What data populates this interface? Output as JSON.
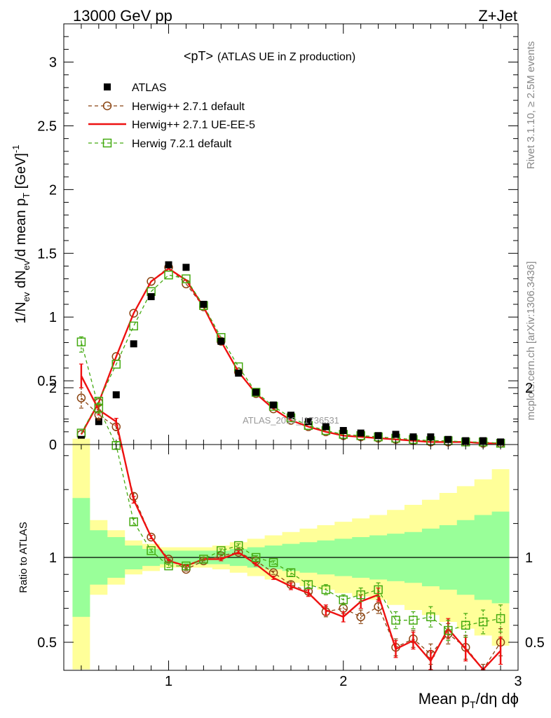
{
  "header": {
    "left": "13000 GeV pp",
    "right": "Z+Jet",
    "plot_title": "<pT>",
    "plot_subtitle": "(ATLAS UE in Z production)",
    "side_rivet": "Rivet 3.1.10, ≥ 2.5M events",
    "side_mcplots": "mcplots.cern.ch [arXiv:1306.3436]",
    "watermark": "ATLAS_2019_I1736531"
  },
  "colors": {
    "data": "#000000",
    "herwigpp_default": "#8B4513",
    "herwigpp_ueee5": "#ee1111",
    "herwig7": "#44aa11",
    "band_inner": "#99ff99",
    "band_outer": "#ffff99"
  },
  "chart_data": [
    {
      "type": "scatter",
      "title": "<pT> (ATLAS UE in Z production)",
      "xlabel": "Mean p_T/dη dϕ",
      "ylabel": "1/N_ev dN_ev/d mean p_T [GeV]^-1",
      "xlim": [
        0.4,
        3.0
      ],
      "ylim": [
        0,
        3.3
      ],
      "x_ticks": [
        "1",
        "2",
        "3"
      ],
      "y_ticks": [
        "0",
        "0.5",
        "1",
        "1.5",
        "2",
        "2.5",
        "3"
      ],
      "legend_position": "top-left",
      "x": [
        0.5,
        0.6,
        0.7,
        0.8,
        0.9,
        1.0,
        1.1,
        1.2,
        1.3,
        1.4,
        1.5,
        1.6,
        1.7,
        1.8,
        1.9,
        2.0,
        2.1,
        2.2,
        2.3,
        2.4,
        2.5,
        2.6,
        2.7,
        2.8,
        2.9
      ],
      "series": [
        {
          "name": "ATLAS",
          "style": "markers",
          "values": [
            0.04,
            0.18,
            0.39,
            0.79,
            1.16,
            1.41,
            1.39,
            1.1,
            0.81,
            0.56,
            0.41,
            0.31,
            0.23,
            0.18,
            0.14,
            0.11,
            0.09,
            0.07,
            0.08,
            0.06,
            0.06,
            0.04,
            0.03,
            0.03,
            0.02
          ]
        },
        {
          "name": "Herwig++ 2.7.1 default",
          "style": "dashed-circle",
          "values": [
            0.08,
            0.33,
            0.69,
            1.03,
            1.28,
            1.39,
            1.26,
            1.08,
            0.81,
            0.57,
            0.4,
            0.28,
            0.19,
            0.14,
            0.1,
            0.07,
            0.06,
            0.05,
            0.04,
            0.03,
            0.02,
            0.02,
            0.02,
            0.01,
            0.01
          ]
        },
        {
          "name": "Herwig++ 2.7.1 UE-EE-5",
          "style": "solid",
          "values": [
            0.08,
            0.33,
            0.69,
            1.03,
            1.28,
            1.38,
            1.29,
            1.08,
            0.81,
            0.57,
            0.4,
            0.28,
            0.19,
            0.14,
            0.1,
            0.07,
            0.06,
            0.05,
            0.04,
            0.03,
            0.02,
            0.02,
            0.02,
            0.01,
            0.01
          ]
        },
        {
          "name": "Herwig 7.2.1 default",
          "style": "dashed-square",
          "values": [
            0.09,
            0.34,
            0.63,
            0.93,
            1.2,
            1.33,
            1.3,
            1.09,
            0.84,
            0.61,
            0.41,
            0.3,
            0.21,
            0.15,
            0.11,
            0.08,
            0.07,
            0.06,
            0.05,
            0.04,
            0.03,
            0.03,
            0.02,
            0.02,
            0.01
          ]
        }
      ]
    },
    {
      "type": "line",
      "ylabel": "Ratio to ATLAS",
      "xlim": [
        0.4,
        3.0
      ],
      "ylim": [
        0.34,
        2.3
      ],
      "x_ticks": [
        "1",
        "2",
        "3"
      ],
      "y_ticks": [
        "0.5",
        "1",
        "2"
      ],
      "x": [
        0.5,
        0.6,
        0.7,
        0.8,
        0.9,
        1.0,
        1.1,
        1.2,
        1.3,
        1.4,
        1.5,
        1.6,
        1.7,
        1.8,
        1.9,
        2.0,
        2.1,
        2.2,
        2.3,
        2.4,
        2.5,
        2.6,
        2.7,
        2.8,
        2.9
      ],
      "bands": {
        "inner_half_width": [
          0.35,
          0.16,
          0.12,
          0.07,
          0.05,
          0.04,
          0.04,
          0.04,
          0.04,
          0.05,
          0.06,
          0.07,
          0.08,
          0.09,
          0.1,
          0.11,
          0.12,
          0.13,
          0.14,
          0.15,
          0.17,
          0.19,
          0.22,
          0.25,
          0.27
        ],
        "outer_half_width": [
          0.7,
          0.22,
          0.16,
          0.1,
          0.08,
          0.06,
          0.06,
          0.06,
          0.07,
          0.09,
          0.11,
          0.13,
          0.15,
          0.17,
          0.19,
          0.21,
          0.23,
          0.25,
          0.28,
          0.31,
          0.34,
          0.38,
          0.42,
          0.46,
          0.52
        ]
      },
      "series": [
        {
          "name": "Herwig++ 2.7.1 default",
          "values": [
            1.94,
            1.84,
            1.77,
            1.36,
            1.12,
            0.99,
            0.93,
            0.98,
            1.01,
            1.03,
            0.98,
            0.91,
            0.84,
            0.8,
            0.68,
            0.7,
            0.65,
            0.71,
            0.47,
            0.52,
            0.43,
            0.55,
            0.47,
            0.3,
            0.5
          ],
          "errors": [
            0.06,
            0.03,
            0.02,
            0.02,
            0.01,
            0.01,
            0.01,
            0.01,
            0.01,
            0.01,
            0.01,
            0.01,
            0.02,
            0.02,
            0.03,
            0.03,
            0.04,
            0.04,
            0.05,
            0.05,
            0.06,
            0.06,
            0.07,
            0.07,
            0.08
          ]
        },
        {
          "name": "Herwig++ 2.7.1 UE-EE-5",
          "values": [
            2.07,
            1.87,
            1.8,
            1.34,
            1.12,
            0.98,
            0.95,
            0.99,
            0.99,
            1.03,
            0.96,
            0.88,
            0.83,
            0.79,
            0.69,
            0.65,
            0.74,
            0.78,
            0.46,
            0.51,
            0.39,
            0.58,
            0.46,
            0.22,
            0.45
          ],
          "errors": [
            0.07,
            0.03,
            0.02,
            0.02,
            0.01,
            0.01,
            0.01,
            0.01,
            0.01,
            0.01,
            0.01,
            0.01,
            0.02,
            0.02,
            0.03,
            0.03,
            0.04,
            0.04,
            0.05,
            0.05,
            0.06,
            0.06,
            0.07,
            0.07,
            0.08
          ]
        },
        {
          "name": "Herwig 7.2.1 default",
          "values": [
            2.27,
            1.88,
            1.66,
            1.21,
            1.04,
            0.95,
            0.95,
            0.99,
            1.04,
            1.07,
            1.0,
            0.97,
            0.91,
            0.84,
            0.81,
            0.75,
            0.78,
            0.81,
            0.63,
            0.63,
            0.65,
            0.57,
            0.6,
            0.62,
            0.64
          ],
          "errors": [
            0.06,
            0.03,
            0.02,
            0.02,
            0.01,
            0.01,
            0.01,
            0.01,
            0.01,
            0.01,
            0.01,
            0.01,
            0.02,
            0.02,
            0.03,
            0.03,
            0.04,
            0.04,
            0.05,
            0.05,
            0.06,
            0.06,
            0.07,
            0.07,
            0.08
          ]
        }
      ],
      "reference_line": 1
    }
  ]
}
